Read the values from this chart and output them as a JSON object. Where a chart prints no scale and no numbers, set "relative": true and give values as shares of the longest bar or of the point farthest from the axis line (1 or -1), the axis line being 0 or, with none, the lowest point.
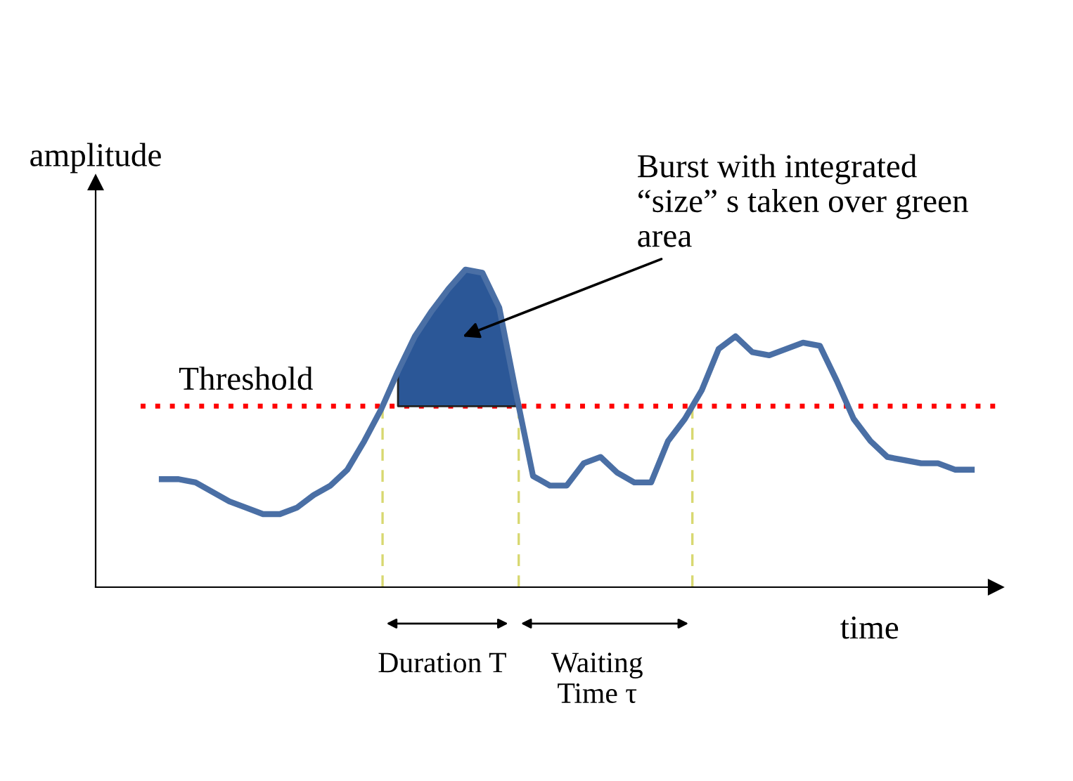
{
  "chart_data": {
    "type": "line",
    "relative": true,
    "xlabel": "time",
    "ylabel": "amplitude",
    "categories": [
      null,
      null,
      null,
      null,
      null,
      null,
      null,
      null,
      null,
      null,
      null,
      null,
      null,
      null,
      null,
      null,
      null,
      null,
      null,
      null,
      null,
      null,
      null,
      null,
      null,
      null,
      null,
      null,
      null,
      null,
      null,
      null,
      null,
      null,
      null,
      null,
      null,
      null,
      null,
      null,
      null,
      null,
      null,
      null,
      null,
      null,
      null,
      null,
      null
    ],
    "series": [
      {
        "color": "#4a6fa5",
        "values": [
          0.34,
          0.34,
          0.33,
          0.3,
          0.27,
          0.25,
          0.23,
          0.23,
          0.25,
          0.29,
          0.32,
          0.37,
          0.46,
          0.56,
          0.68,
          0.79,
          0.87,
          0.94,
          1.0,
          0.99,
          0.88,
          0.61,
          0.35,
          0.32,
          0.32,
          0.39,
          0.41,
          0.36,
          0.33,
          0.33,
          0.46,
          0.53,
          0.62,
          0.75,
          0.79,
          0.74,
          0.73,
          0.75,
          0.77,
          0.76,
          0.65,
          0.53,
          0.46,
          0.41,
          0.4,
          0.39,
          0.39,
          0.37,
          0.37
        ]
      }
    ],
    "ref_lines": [
      {
        "axis": "y",
        "value": 0.57,
        "label": "Threshold",
        "color": "#ff0000",
        "line_style": "dotted"
      }
    ],
    "annotations": [
      "Burst with integrated\n“size” s taken over green\narea",
      "Duration T",
      "Waiting\nTime τ"
    ],
    "grid": false,
    "legend": false,
    "marker": "none",
    "line_style": "solid"
  }
}
